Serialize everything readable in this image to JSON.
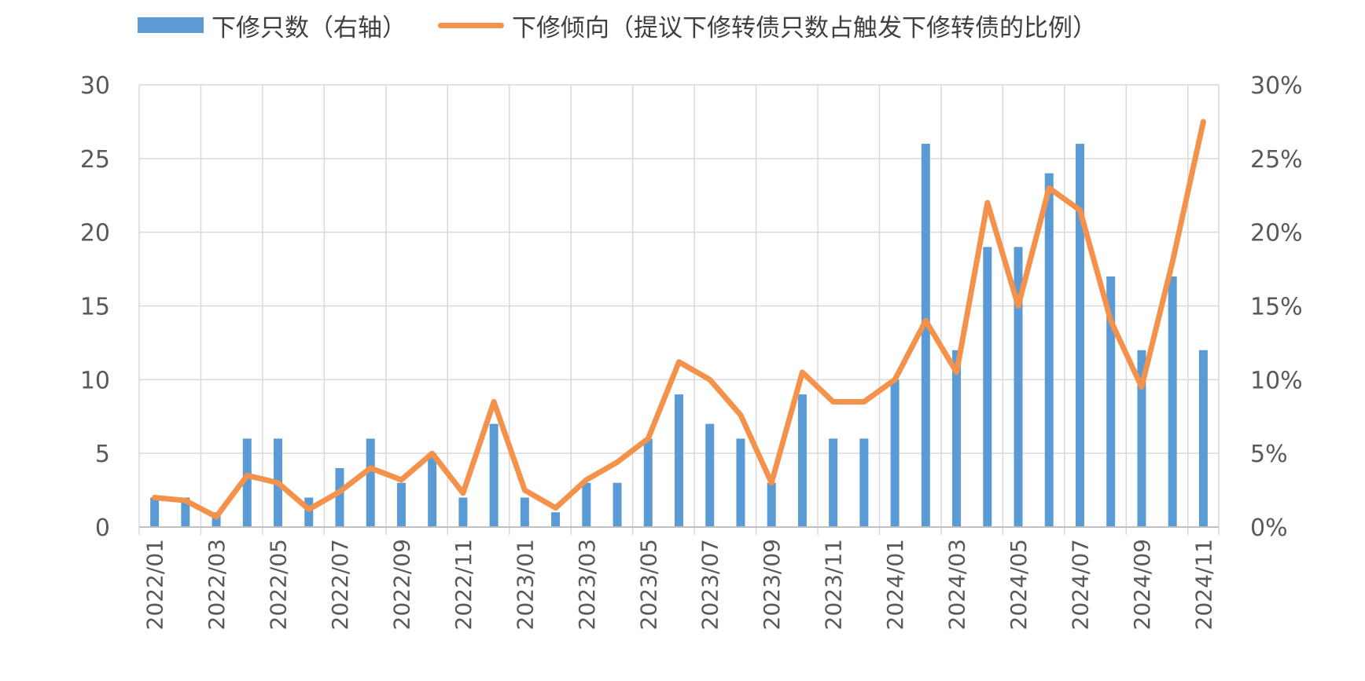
{
  "legend": [
    {
      "label": "下修只数（右轴）",
      "color": "#5B9BD5",
      "kind": "bar"
    },
    {
      "label": "下修倾向（提议下修转债只数占触发下修转债的比例）",
      "color": "#F4914A",
      "kind": "line"
    }
  ],
  "chart_data": {
    "type": "bar+line",
    "categories": [
      "2022/01",
      "2022/02",
      "2022/03",
      "2022/04",
      "2022/05",
      "2022/06",
      "2022/07",
      "2022/08",
      "2022/09",
      "2022/10",
      "2022/11",
      "2022/12",
      "2023/01",
      "2023/02",
      "2023/03",
      "2023/04",
      "2023/05",
      "2023/06",
      "2023/07",
      "2023/08",
      "2023/09",
      "2023/10",
      "2023/11",
      "2023/12",
      "2024/01",
      "2024/02",
      "2024/03",
      "2024/04",
      "2024/05",
      "2024/06",
      "2024/07",
      "2024/08",
      "2024/09",
      "2024/10",
      "2024/11"
    ],
    "x_tick_labels": [
      "2022/01",
      "2022/03",
      "2022/05",
      "2022/07",
      "2022/09",
      "2022/11",
      "2023/01",
      "2023/03",
      "2023/05",
      "2023/07",
      "2023/09",
      "2023/11",
      "2024/01",
      "2024/03",
      "2024/05",
      "2024/07",
      "2024/09",
      "2024/11"
    ],
    "series": [
      {
        "name": "下修只数（右轴）",
        "type": "bar",
        "axis": "left",
        "color": "#5B9BD5",
        "values": [
          2,
          2,
          1,
          6,
          6,
          2,
          4,
          6,
          3,
          5,
          2,
          7,
          2,
          1,
          3,
          3,
          6,
          9,
          7,
          6,
          3,
          9,
          6,
          6,
          10,
          26,
          12,
          19,
          19,
          24,
          26,
          17,
          12,
          17,
          12
        ]
      },
      {
        "name": "下修倾向（提议下修转债只数占触发下修转债的比例）",
        "type": "line",
        "axis": "right",
        "color": "#F4914A",
        "values": [
          2.0,
          1.8,
          0.7,
          3.5,
          3.0,
          1.2,
          2.4,
          4.0,
          3.2,
          5.0,
          2.3,
          8.5,
          2.5,
          1.3,
          3.2,
          4.4,
          6.0,
          11.2,
          10.0,
          7.6,
          3.0,
          10.5,
          8.5,
          8.5,
          10.0,
          14.0,
          10.5,
          22.0,
          15.0,
          23.0,
          21.5,
          14.0,
          9.5,
          18.0,
          27.5
        ]
      }
    ],
    "y_left": {
      "min": 0,
      "max": 30,
      "ticks": [
        "0",
        "5",
        "10",
        "15",
        "20",
        "25",
        "30"
      ]
    },
    "y_right": {
      "min": 0,
      "max": 30,
      "ticks": [
        "0%",
        "5%",
        "10%",
        "15%",
        "20%",
        "25%",
        "30%"
      ]
    },
    "grid": true,
    "legend_position": "top"
  }
}
